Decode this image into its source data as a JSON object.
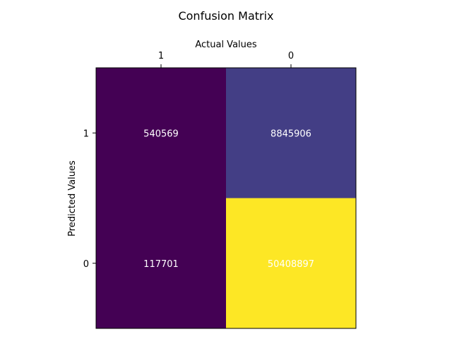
{
  "chart_data": {
    "type": "heatmap",
    "title": "Confusion Matrix",
    "xlabel": "Actual Values",
    "ylabel": "Predicted Values",
    "x_categories": [
      "1",
      "0"
    ],
    "y_categories": [
      "1",
      "0"
    ],
    "values": [
      [
        540569,
        8845906
      ],
      [
        117701,
        50408897
      ]
    ],
    "colormap": "viridis",
    "cell_colors": [
      [
        "#440154",
        "#433e85"
      ],
      [
        "#440154",
        "#fde725"
      ]
    ],
    "cell_text_color": "#ffffff",
    "x_axis_position": "top",
    "grid": false,
    "legend": "none"
  }
}
